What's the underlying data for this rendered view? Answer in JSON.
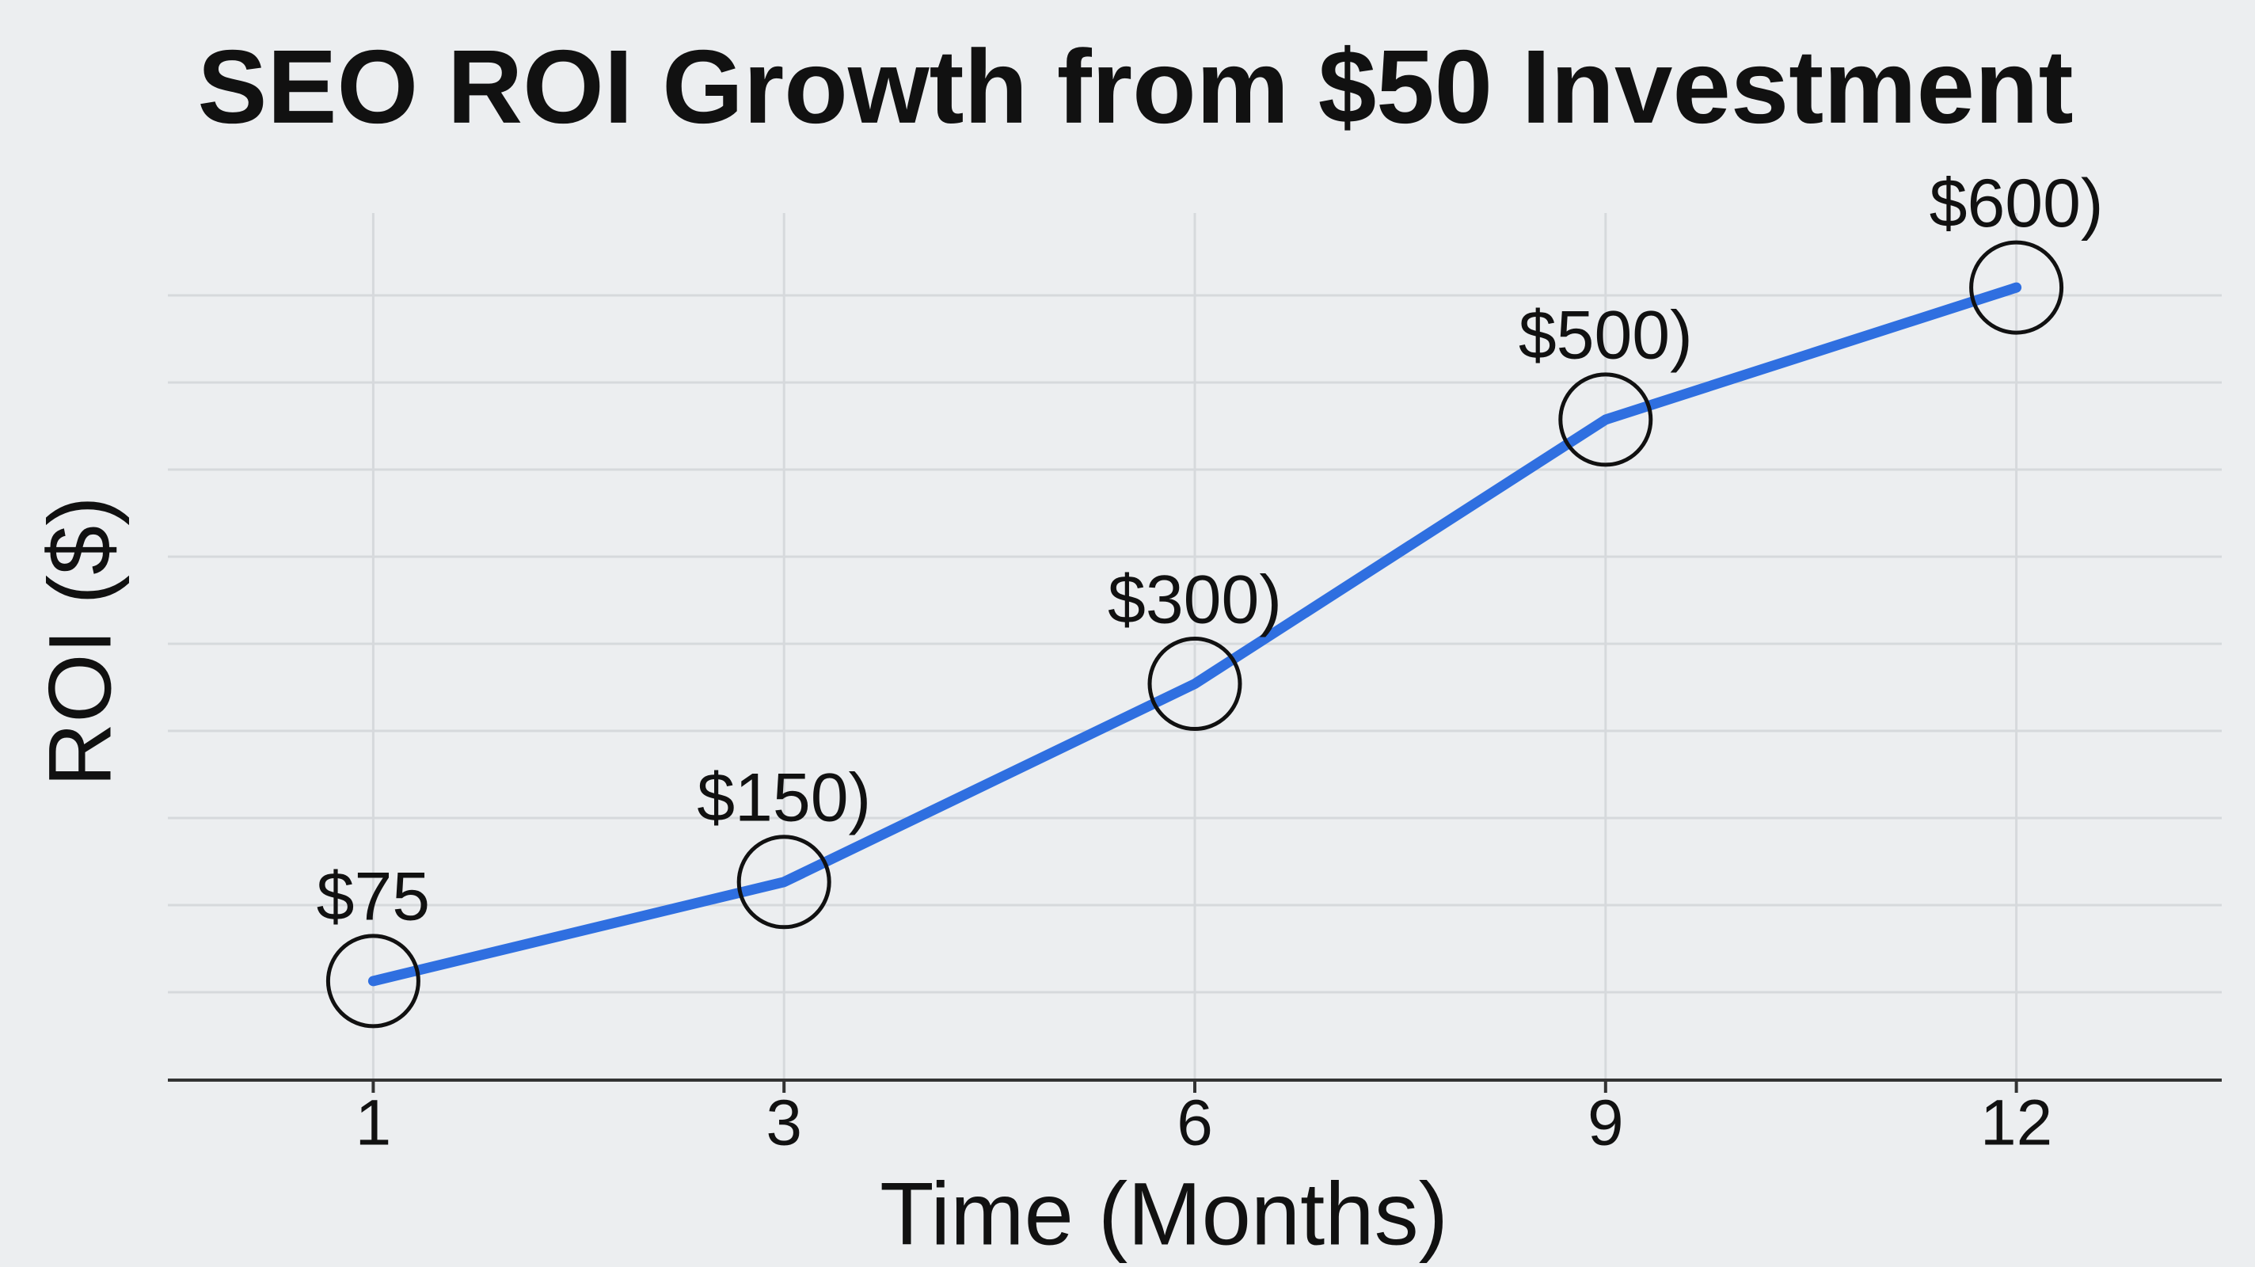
{
  "chart_data": {
    "type": "line",
    "title": "SEO ROI Growth from $50 Investment",
    "x_label": "Time (Months)",
    "y_label": "ROI ($)",
    "categories": [
      "1",
      "3",
      "6",
      "9",
      "12"
    ],
    "series": [
      {
        "name": "ROI",
        "color": "#2f6fe0",
        "values": [
          75,
          150,
          300,
          500,
          600
        ],
        "value_labels": [
          "$75",
          "$150)",
          "$300)",
          "$500)",
          "$600)"
        ]
      }
    ],
    "ylim": [
      0,
      660
    ],
    "grid": true
  }
}
